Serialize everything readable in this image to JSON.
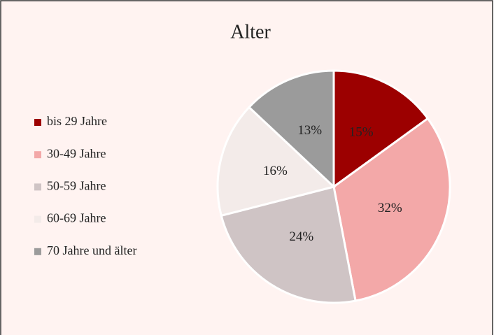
{
  "chart_data": {
    "type": "pie",
    "title": "Alter",
    "categories": [
      "bis 29 Jahre",
      "30-49 Jahre",
      "50-59 Jahre",
      "60-69 Jahre",
      "70 Jahre und älter"
    ],
    "values": [
      15,
      32,
      24,
      16,
      13
    ],
    "value_labels": [
      "15%",
      "32%",
      "24%",
      "16%",
      "13%"
    ],
    "colors": [
      "#9c0000",
      "#f3a8a8",
      "#cfc4c5",
      "#f3ebe9",
      "#9b9b9b"
    ],
    "legend": "left"
  }
}
